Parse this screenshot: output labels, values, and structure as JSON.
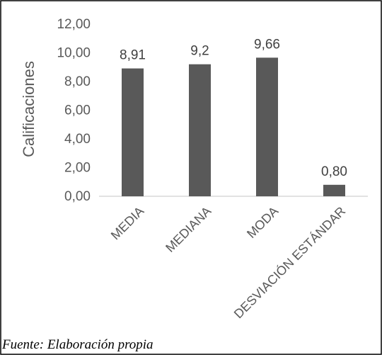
{
  "chart_data": {
    "type": "bar",
    "title": "",
    "xlabel": "",
    "ylabel": "Calificaciones",
    "categories": [
      "MEDIA",
      "MEDIANA",
      "MODA",
      "DESVIACIÓN ESTÁNDAR"
    ],
    "values": [
      8.91,
      9.2,
      9.66,
      0.8
    ],
    "data_labels": [
      "8,91",
      "9,2",
      "9,66",
      "0,80"
    ],
    "y_ticks": [
      "0,00",
      "2,00",
      "4,00",
      "6,00",
      "8,00",
      "10,00",
      "12,00"
    ],
    "ylim": [
      0,
      12
    ],
    "grid": false,
    "legend": "none",
    "bar_color": "#595959"
  },
  "source_note": "Fuente: Elaboración propia"
}
